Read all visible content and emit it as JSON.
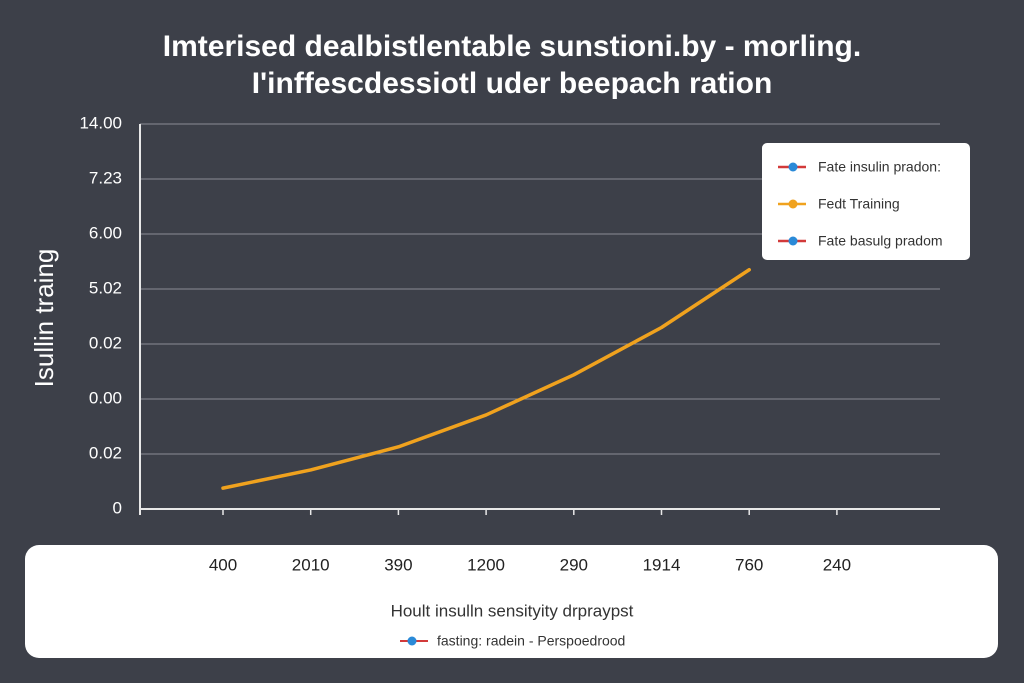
{
  "chart_data": {
    "type": "line",
    "title": [
      "Imterised dealbistlentable sunstioni.by - morling.",
      "I'inffescdessiotl uder beepach ration"
    ],
    "y_label": "Isullin traing",
    "x_label": "Hoult insulln sensityity drpraypst",
    "note": "fasting: radein - Perspoedrood",
    "categories": [
      "400",
      "2010",
      "390",
      "1200",
      "290",
      "1914",
      "760",
      "240"
    ],
    "series": [
      {
        "name": "Fate insulin pradon:",
        "color": "#d23a3a",
        "marker_color": "#2a8ad8",
        "values": [
          null,
          null,
          null,
          null,
          null,
          null,
          null,
          null
        ]
      },
      {
        "name": "Fedt Training",
        "color": "#f0a21e",
        "marker_color": "#f0a21e",
        "values": [
          0.38,
          0.71,
          1.13,
          1.71,
          2.44,
          3.3,
          4.35,
          null
        ]
      },
      {
        "name": "Fate basulg pradom",
        "color": "#d23a3a",
        "marker_color": "#2a8ad8",
        "values": [
          null,
          null,
          null,
          null,
          null,
          null,
          null,
          null
        ]
      }
    ],
    "ylim": [
      0,
      7
    ],
    "yticks": [
      0,
      {
        "value": 1,
        "label": "0.02"
      },
      {
        "value": 2,
        "label": "0.00"
      },
      {
        "value": 3,
        "label": "0.02"
      },
      {
        "value": 4,
        "label": "5.02"
      },
      {
        "value": 5,
        "label": "6.00"
      },
      {
        "value": 6,
        "label": "7.23"
      },
      {
        "value": 7,
        "label": "14.00"
      }
    ],
    "grid": true,
    "legend": "upper right"
  }
}
